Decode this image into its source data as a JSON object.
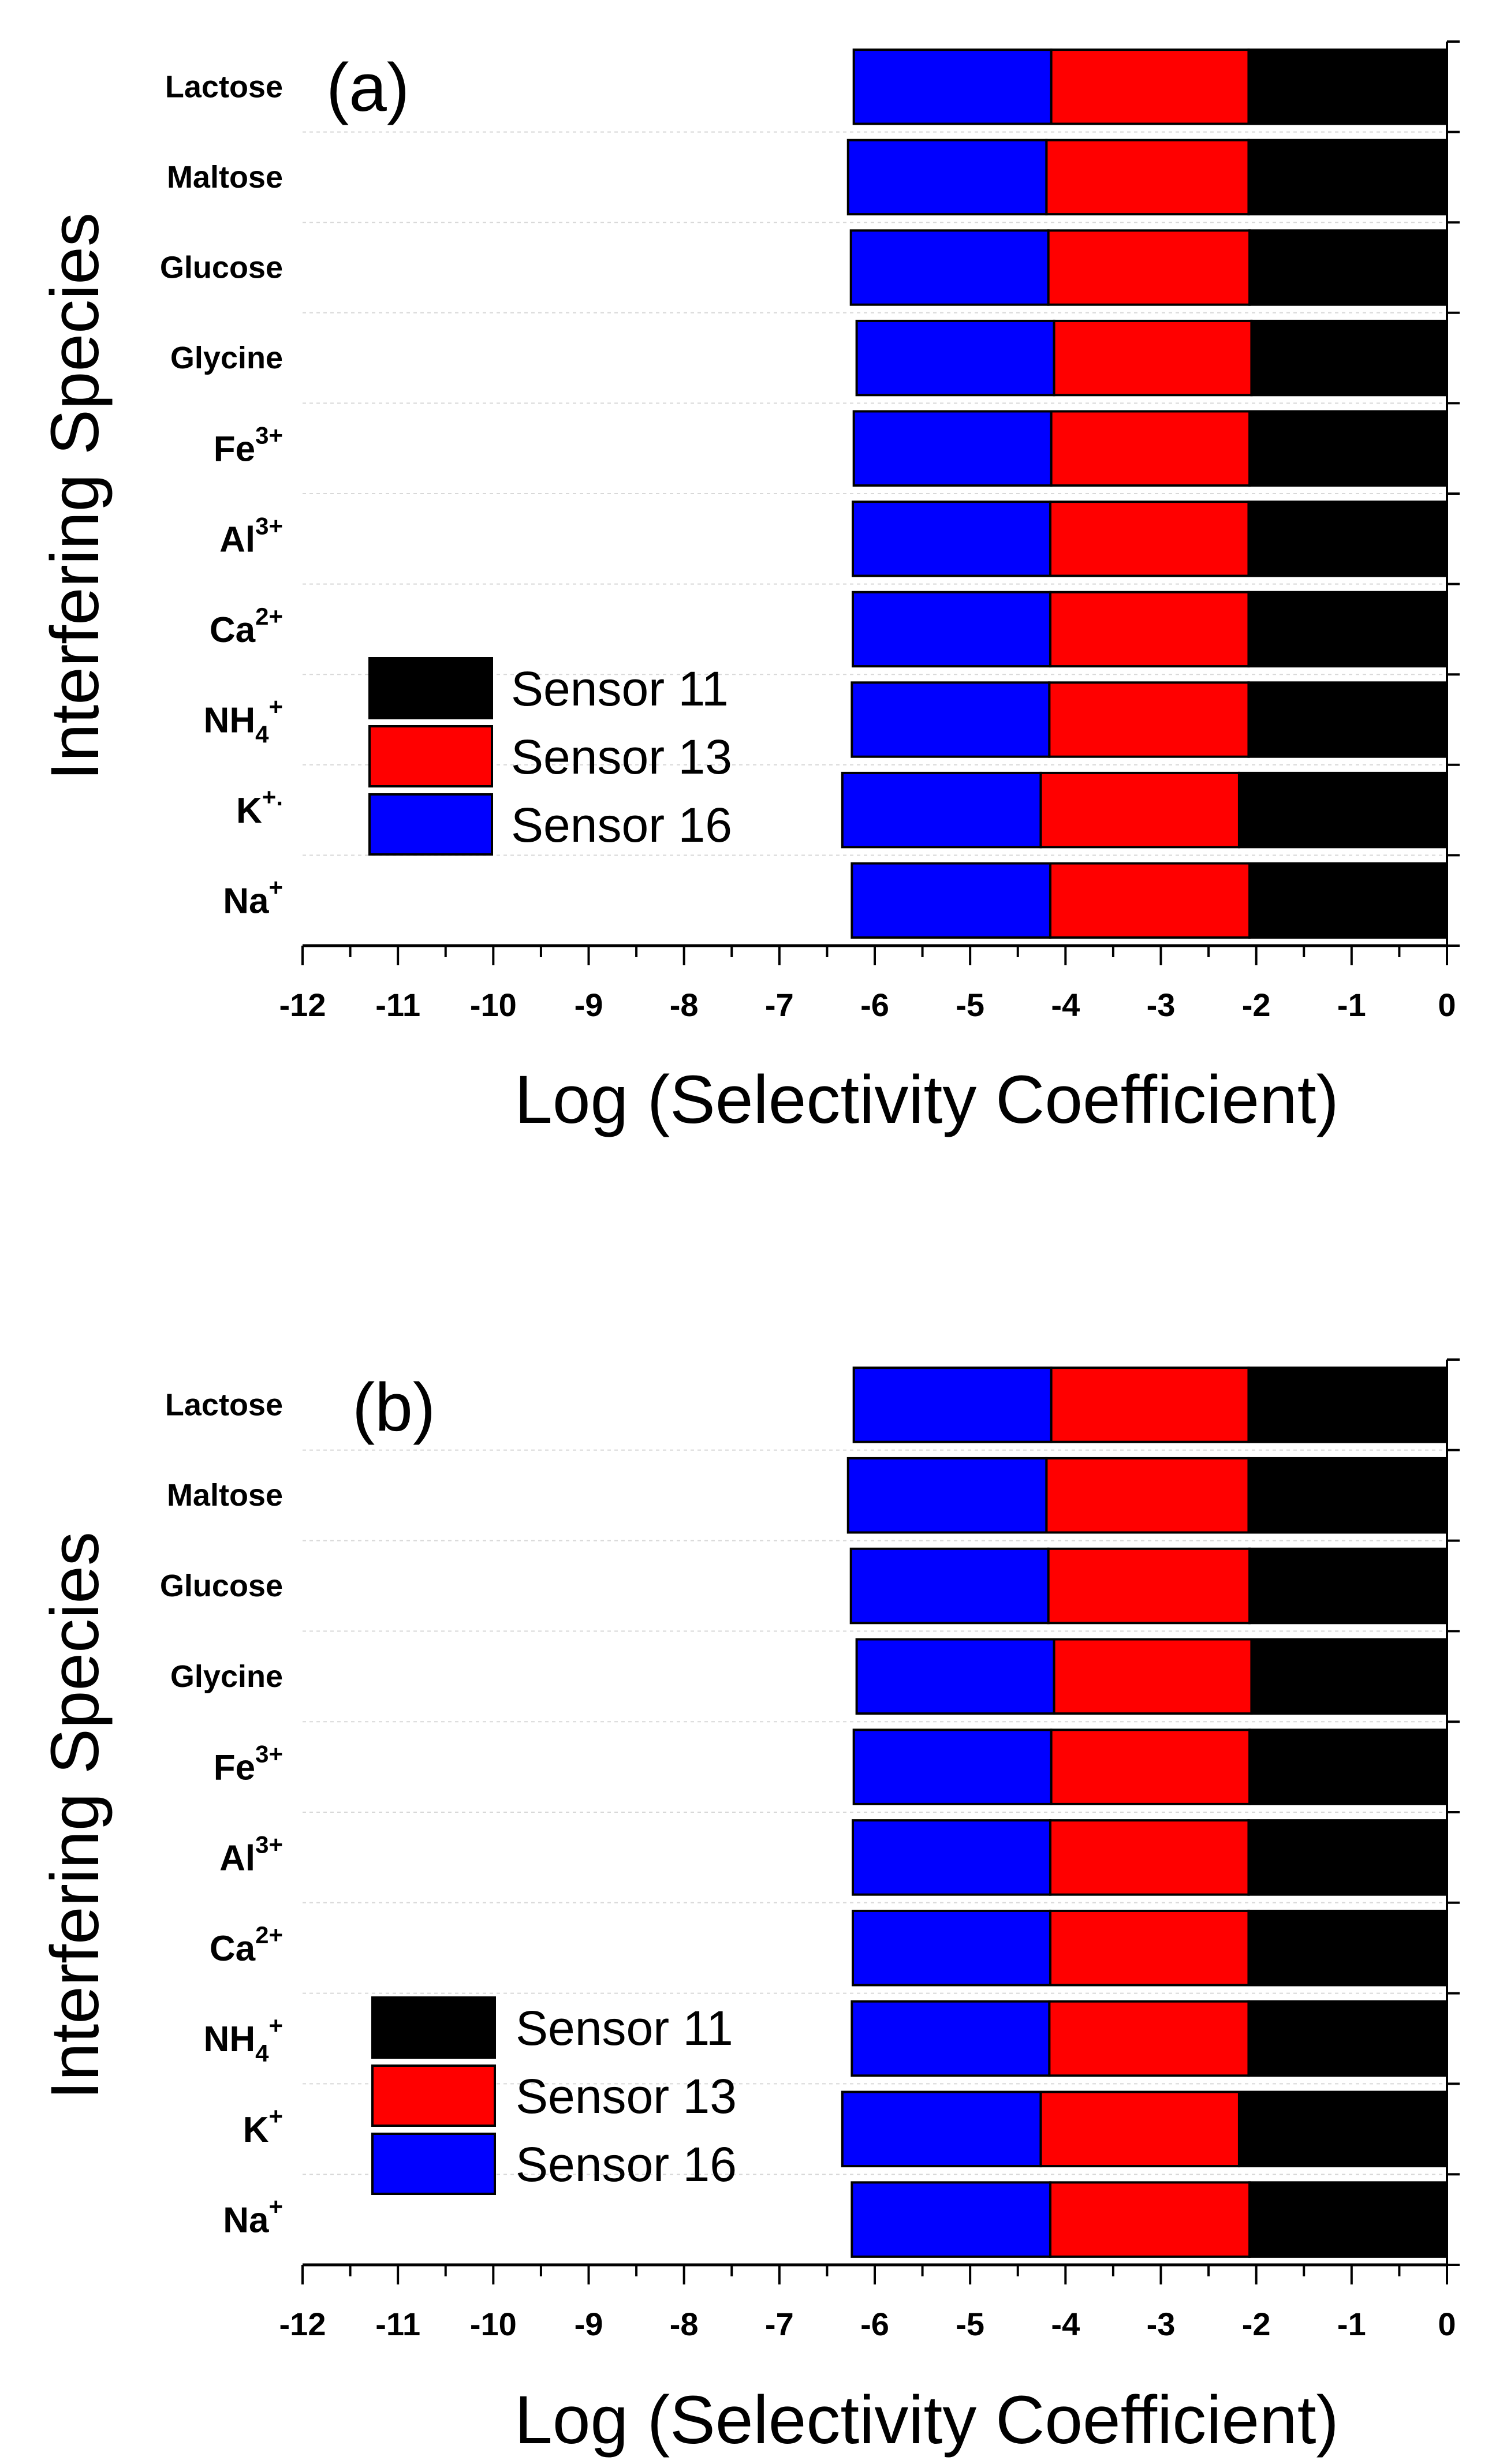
{
  "chart_data": [
    {
      "type": "bar",
      "orientation": "horizontal",
      "stacked": true,
      "panel_label": "(a)",
      "xlabel": "Log (Selectivity Coefficient)",
      "ylabel": "Interfering Species",
      "xlim": [
        -12,
        0
      ],
      "xticks": [
        "-12",
        "-11",
        "-10",
        "-9",
        "-8",
        "-7",
        "-6",
        "-5",
        "-4",
        "-3",
        "-2",
        "-1",
        "0"
      ],
      "categories": [
        {
          "base": "Lactose",
          "sub": "",
          "sup": "",
          "style": "name"
        },
        {
          "base": "Maltose",
          "sub": "",
          "sup": "",
          "style": "name"
        },
        {
          "base": "Glucose",
          "sub": "",
          "sup": "",
          "style": "name"
        },
        {
          "base": "Glycine",
          "sub": "",
          "sup": "",
          "style": "name"
        },
        {
          "base": "Fe",
          "sub": "",
          "sup": "3+",
          "style": "ion"
        },
        {
          "base": "Al",
          "sub": "",
          "sup": "3+",
          "style": "ion"
        },
        {
          "base": "Ca",
          "sub": "",
          "sup": "2+",
          "style": "ion"
        },
        {
          "base": "NH",
          "sub": "4",
          "sup": "+",
          "style": "ion"
        },
        {
          "base": "K",
          "sub": "",
          "sup": "+.",
          "style": "ion"
        },
        {
          "base": "Na",
          "sub": "",
          "sup": "+",
          "style": "ion"
        }
      ],
      "series": [
        {
          "name": "Sensor 11",
          "color": "#000000",
          "values": [
            -2.08,
            -2.08,
            -2.07,
            -2.05,
            -2.07,
            -2.08,
            -2.08,
            -2.08,
            -2.18,
            -2.07
          ]
        },
        {
          "name": "Sensor 13",
          "color": "#ff0000",
          "values": [
            -2.07,
            -2.12,
            -2.11,
            -2.07,
            -2.08,
            -2.08,
            -2.08,
            -2.09,
            -2.08,
            -2.09
          ]
        },
        {
          "name": "Sensor 16",
          "color": "#0000ff",
          "values": [
            -2.07,
            -2.08,
            -2.07,
            -2.07,
            -2.07,
            -2.07,
            -2.07,
            -2.07,
            -2.08,
            -2.08
          ]
        }
      ],
      "legend": {
        "position": "lower-left",
        "entries": [
          "Sensor 11",
          "Sensor 13",
          "Sensor 16"
        ]
      }
    },
    {
      "type": "bar",
      "orientation": "horizontal",
      "stacked": true,
      "panel_label": "(b)",
      "xlabel": "Log (Selectivity Coefficient)",
      "ylabel": "Interfering Species",
      "xlim": [
        -12,
        0
      ],
      "xticks": [
        "-12",
        "-11",
        "-10",
        "-9",
        "-8",
        "-7",
        "-6",
        "-5",
        "-4",
        "-3",
        "-2",
        "-1",
        "0"
      ],
      "categories": [
        {
          "base": "Lactose",
          "sub": "",
          "sup": "",
          "style": "name"
        },
        {
          "base": "Maltose",
          "sub": "",
          "sup": "",
          "style": "name"
        },
        {
          "base": "Glucose",
          "sub": "",
          "sup": "",
          "style": "name"
        },
        {
          "base": "Glycine",
          "sub": "",
          "sup": "",
          "style": "name"
        },
        {
          "base": "Fe",
          "sub": "",
          "sup": "3+",
          "style": "ion"
        },
        {
          "base": "Al",
          "sub": "",
          "sup": "3+",
          "style": "ion"
        },
        {
          "base": "Ca",
          "sub": "",
          "sup": "2+",
          "style": "ion"
        },
        {
          "base": "NH",
          "sub": "4",
          "sup": "+",
          "style": "ion"
        },
        {
          "base": "K",
          "sub": "",
          "sup": "+",
          "style": "ion"
        },
        {
          "base": "Na",
          "sub": "",
          "sup": "+",
          "style": "ion"
        }
      ],
      "series": [
        {
          "name": "Sensor 11",
          "color": "#000000",
          "values": [
            -2.08,
            -2.08,
            -2.07,
            -2.05,
            -2.07,
            -2.08,
            -2.08,
            -2.08,
            -2.18,
            -2.07
          ]
        },
        {
          "name": "Sensor 13",
          "color": "#ff0000",
          "values": [
            -2.07,
            -2.12,
            -2.11,
            -2.07,
            -2.08,
            -2.08,
            -2.08,
            -2.09,
            -2.08,
            -2.09
          ]
        },
        {
          "name": "Sensor 16",
          "color": "#0000ff",
          "values": [
            -2.07,
            -2.08,
            -2.07,
            -2.07,
            -2.07,
            -2.07,
            -2.07,
            -2.07,
            -2.08,
            -2.08
          ]
        }
      ],
      "legend": {
        "position": "lower-left",
        "entries": [
          "Sensor 11",
          "Sensor 13",
          "Sensor 16"
        ]
      }
    }
  ]
}
